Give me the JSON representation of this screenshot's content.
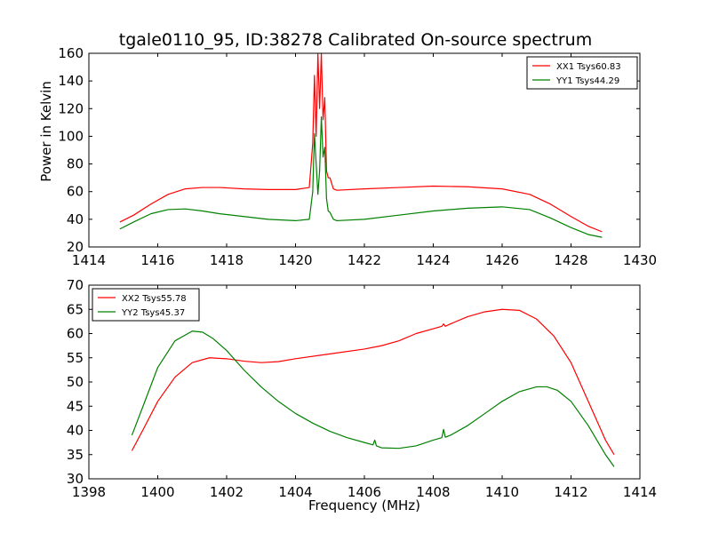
{
  "figure": {
    "title": "tgale0110_95, ID:38278 Calibrated On-source spectrum",
    "ylabel": "Power in Kelvin",
    "xlabel": "Frequency (MHz)"
  },
  "chart_data": [
    {
      "type": "line",
      "title": "tgale0110_95, ID:38278 Calibrated On-source spectrum",
      "xlabel": "",
      "ylabel": "Power in Kelvin",
      "xlim": [
        1414,
        1430
      ],
      "ylim": [
        20,
        160
      ],
      "xticks": [
        1414,
        1416,
        1418,
        1420,
        1422,
        1424,
        1426,
        1428,
        1430
      ],
      "yticks": [
        20,
        40,
        60,
        80,
        100,
        120,
        140,
        160
      ],
      "legend_position": "top-right",
      "grid": false,
      "series": [
        {
          "name": "XX1 Tsys60.83",
          "color": "#ff0000",
          "x": [
            1414.9,
            1415.3,
            1415.8,
            1416.3,
            1416.8,
            1417.3,
            1417.8,
            1418.5,
            1419.2,
            1420.0,
            1420.4,
            1420.5,
            1420.55,
            1420.6,
            1420.65,
            1420.7,
            1420.75,
            1420.8,
            1420.85,
            1420.9,
            1420.95,
            1421.0,
            1421.1,
            1421.2,
            1422.0,
            1423.0,
            1424.0,
            1425.0,
            1426.0,
            1426.8,
            1427.4,
            1428.0,
            1428.5,
            1428.9
          ],
          "values": [
            38,
            43,
            51,
            58,
            62,
            63,
            63,
            62,
            61.5,
            61.5,
            63,
            95,
            144,
            100,
            160,
            120,
            160,
            112,
            128,
            75,
            70,
            70,
            62,
            61,
            62,
            63,
            64,
            63.5,
            62,
            58,
            51,
            42,
            35,
            31
          ]
        },
        {
          "name": "YY1 Tsys44.29",
          "color": "#008000",
          "x": [
            1414.9,
            1415.3,
            1415.8,
            1416.3,
            1416.8,
            1417.3,
            1417.8,
            1418.5,
            1419.2,
            1420.0,
            1420.4,
            1420.5,
            1420.55,
            1420.6,
            1420.65,
            1420.7,
            1420.75,
            1420.8,
            1420.85,
            1420.9,
            1420.95,
            1421.0,
            1421.1,
            1421.2,
            1422.0,
            1423.0,
            1424.0,
            1425.0,
            1426.0,
            1426.8,
            1427.4,
            1428.0,
            1428.5,
            1428.9
          ],
          "values": [
            33,
            38,
            44,
            47,
            47.5,
            46,
            44,
            42,
            40,
            39,
            40,
            60,
            102,
            80,
            58,
            75,
            114,
            85,
            92,
            55,
            46,
            45,
            40,
            39,
            40,
            43,
            46,
            48,
            49,
            47,
            41,
            34,
            29,
            27
          ]
        }
      ]
    },
    {
      "type": "line",
      "title": "",
      "xlabel": "Frequency (MHz)",
      "ylabel": "",
      "xlim": [
        1398,
        1414
      ],
      "ylim": [
        30,
        70
      ],
      "xticks": [
        1398,
        1400,
        1402,
        1404,
        1406,
        1408,
        1410,
        1412,
        1414
      ],
      "yticks": [
        30,
        35,
        40,
        45,
        50,
        55,
        60,
        65,
        70
      ],
      "legend_position": "top-left",
      "grid": false,
      "series": [
        {
          "name": "XX2 Tsys55.78",
          "color": "#ff0000",
          "x": [
            1399.25,
            1399.6,
            1400.0,
            1400.5,
            1401.0,
            1401.5,
            1402.0,
            1402.5,
            1403.0,
            1403.5,
            1404.0,
            1405.0,
            1406.0,
            1406.5,
            1407.0,
            1407.5,
            1408.0,
            1408.25,
            1408.3,
            1408.35,
            1408.5,
            1409.0,
            1409.5,
            1410.0,
            1410.5,
            1411.0,
            1411.5,
            1412.0,
            1412.5,
            1413.0,
            1413.25
          ],
          "values": [
            35.8,
            40.5,
            46,
            51,
            54,
            55,
            54.8,
            54.3,
            54,
            54.2,
            54.8,
            55.8,
            56.8,
            57.5,
            58.5,
            60,
            61,
            61.5,
            62,
            61.5,
            62,
            63.5,
            64.5,
            65,
            64.8,
            63,
            59.5,
            54,
            46,
            38,
            35
          ]
        },
        {
          "name": "YY2 Tsys45.37",
          "color": "#008000",
          "x": [
            1399.25,
            1399.6,
            1400.0,
            1400.5,
            1401.0,
            1401.3,
            1401.6,
            1402.0,
            1402.5,
            1403.0,
            1403.5,
            1404.0,
            1404.5,
            1405.0,
            1405.5,
            1406.0,
            1406.25,
            1406.3,
            1406.35,
            1406.5,
            1407.0,
            1407.5,
            1408.0,
            1408.25,
            1408.3,
            1408.35,
            1408.5,
            1409.0,
            1409.5,
            1410.0,
            1410.5,
            1411.0,
            1411.3,
            1411.6,
            1412.0,
            1412.5,
            1413.0,
            1413.25
          ],
          "values": [
            39,
            45.5,
            53,
            58.5,
            60.5,
            60.3,
            59,
            56.5,
            52.5,
            49,
            46,
            43.5,
            41.5,
            39.8,
            38.5,
            37.5,
            37,
            38,
            36.8,
            36.4,
            36.3,
            36.8,
            38,
            38.5,
            40.2,
            38.6,
            39,
            41,
            43.5,
            46,
            48,
            49,
            49,
            48.3,
            46,
            41,
            35,
            32.5
          ]
        }
      ]
    }
  ]
}
